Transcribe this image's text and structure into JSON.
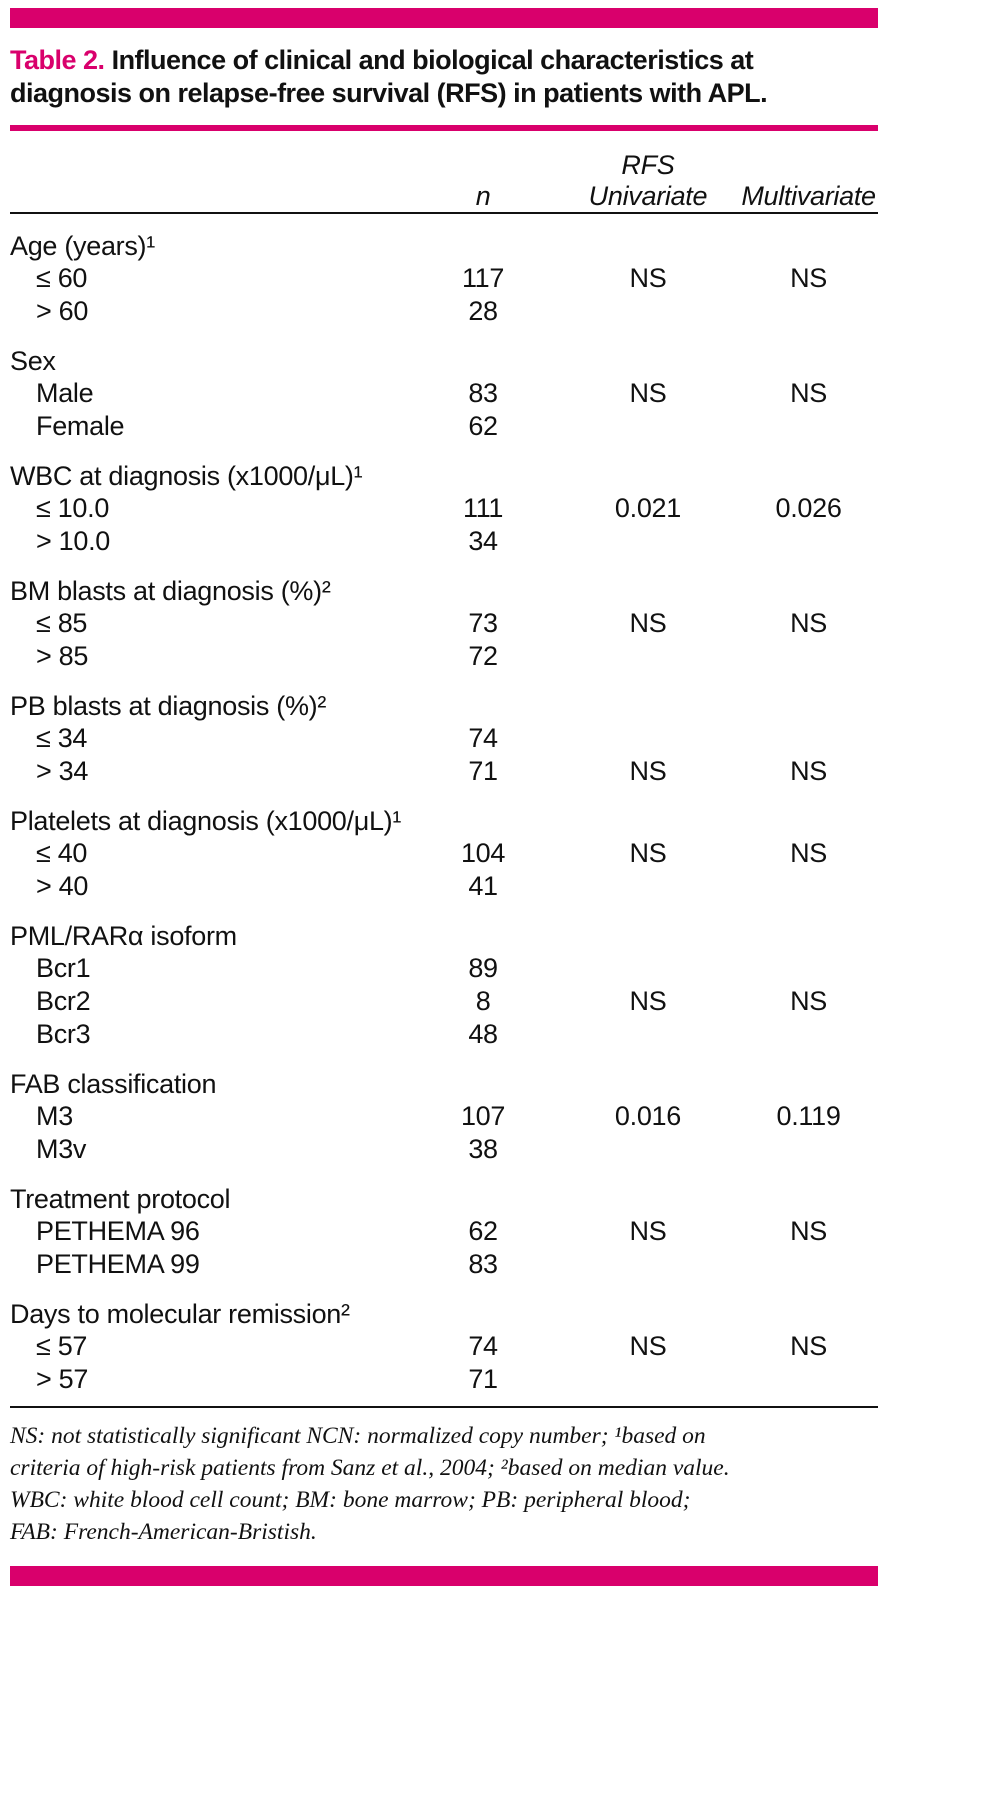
{
  "colors": {
    "accent": "#d9006c",
    "text": "#111111"
  },
  "caption": {
    "label": "Table 2.",
    "title": "Influence of clinical and biological characteristics at diagnosis on relapse-free survival (RFS) in patients with APL."
  },
  "header": {
    "group": "RFS",
    "n": "n",
    "univariate": "Univariate",
    "multivariate": "Multivariate"
  },
  "groups": [
    {
      "label": "Age (years)¹",
      "rows": [
        {
          "label": "≤ 60",
          "n": "117",
          "univariate": "NS",
          "multivariate": "NS"
        },
        {
          "label": "> 60",
          "n": "28",
          "univariate": "",
          "multivariate": ""
        }
      ]
    },
    {
      "label": "Sex",
      "rows": [
        {
          "label": "Male",
          "n": "83",
          "univariate": "NS",
          "multivariate": "NS"
        },
        {
          "label": "Female",
          "n": "62",
          "univariate": "",
          "multivariate": ""
        }
      ]
    },
    {
      "label": "WBC at diagnosis (x1000/μL)¹",
      "rows": [
        {
          "label": "≤ 10.0",
          "n": "111",
          "univariate": "0.021",
          "multivariate": "0.026"
        },
        {
          "label": "> 10.0",
          "n": "34",
          "univariate": "",
          "multivariate": ""
        }
      ]
    },
    {
      "label": "BM blasts at diagnosis (%)²",
      "rows": [
        {
          "label": "≤ 85",
          "n": "73",
          "univariate": "NS",
          "multivariate": "NS"
        },
        {
          "label": "> 85",
          "n": "72",
          "univariate": "",
          "multivariate": ""
        }
      ]
    },
    {
      "label": "PB blasts at diagnosis (%)²",
      "rows": [
        {
          "label": "≤ 34",
          "n": "74",
          "univariate": "",
          "multivariate": ""
        },
        {
          "label": "> 34",
          "n": "71",
          "univariate": "NS",
          "multivariate": "NS"
        }
      ]
    },
    {
      "label": "Platelets at diagnosis (x1000/μL)¹",
      "rows": [
        {
          "label": "≤ 40",
          "n": "104",
          "univariate": "NS",
          "multivariate": "NS"
        },
        {
          "label": "> 40",
          "n": "41",
          "univariate": "",
          "multivariate": ""
        }
      ]
    },
    {
      "label": "PML/RARα isoform",
      "rows": [
        {
          "label": "Bcr1",
          "n": "89",
          "univariate": "",
          "multivariate": ""
        },
        {
          "label": "Bcr2",
          "n": "8",
          "univariate": "NS",
          "multivariate": "NS"
        },
        {
          "label": "Bcr3",
          "n": "48",
          "univariate": "",
          "multivariate": ""
        }
      ]
    },
    {
      "label": "FAB classification",
      "rows": [
        {
          "label": "M3",
          "n": "107",
          "univariate": "0.016",
          "multivariate": "0.119"
        },
        {
          "label": "M3v",
          "n": "38",
          "univariate": "",
          "multivariate": ""
        }
      ]
    },
    {
      "label": "Treatment protocol",
      "rows": [
        {
          "label": "PETHEMA 96",
          "n": "62",
          "univariate": "NS",
          "multivariate": "NS"
        },
        {
          "label": "PETHEMA 99",
          "n": "83",
          "univariate": "",
          "multivariate": ""
        }
      ]
    },
    {
      "label": "Days to molecular remission²",
      "rows": [
        {
          "label": "≤ 57",
          "n": "74",
          "univariate": "NS",
          "multivariate": "NS"
        },
        {
          "label": "> 57",
          "n": "71",
          "univariate": "",
          "multivariate": ""
        }
      ]
    }
  ],
  "footnote": {
    "lines": [
      "NS: not statistically significant NCN: normalized copy number; ¹based on",
      "criteria of high-risk patients from Sanz et al., 2004; ²based on median value.",
      "WBC: white blood cell count; BM: bone marrow; PB: peripheral blood;",
      "FAB: French-American-Bristish."
    ]
  }
}
